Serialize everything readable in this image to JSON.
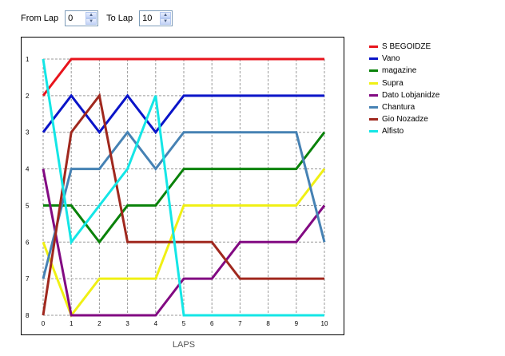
{
  "controls": {
    "from_label": "From Lap",
    "from_value": "0",
    "to_label": "To Lap",
    "to_value": "10"
  },
  "chart_data": {
    "type": "line",
    "x": [
      0,
      1,
      2,
      3,
      4,
      5,
      6,
      7,
      8,
      9,
      10
    ],
    "xlabel": "LAPS",
    "ylabel": "",
    "xlim": [
      0,
      10
    ],
    "ylim": [
      1,
      8
    ],
    "y_inverted": true,
    "x_ticks": [
      "0",
      "1",
      "2",
      "3",
      "4",
      "5",
      "6",
      "7",
      "8",
      "9",
      "10"
    ],
    "y_ticks": [
      "1",
      "2",
      "3",
      "4",
      "5",
      "6",
      "7",
      "8"
    ],
    "grid": true,
    "legend_position": "right",
    "series": [
      {
        "name": "S BEGOIDZE",
        "color": "#e8141c",
        "values": [
          2,
          1,
          1,
          1,
          1,
          1,
          1,
          1,
          1,
          1,
          1
        ]
      },
      {
        "name": "Vano",
        "color": "#0a14c8",
        "values": [
          3,
          2,
          3,
          2,
          3,
          2,
          2,
          2,
          2,
          2,
          2
        ]
      },
      {
        "name": "magazine",
        "color": "#0a820a",
        "values": [
          5,
          5,
          6,
          5,
          5,
          4,
          4,
          4,
          4,
          4,
          3
        ]
      },
      {
        "name": "Supra",
        "color": "#f0f014",
        "values": [
          6,
          8,
          7,
          7,
          7,
          5,
          5,
          5,
          5,
          5,
          4
        ]
      },
      {
        "name": "Dato Lobjanidze",
        "color": "#820a82",
        "values": [
          4,
          8,
          8,
          8,
          8,
          7,
          7,
          6,
          6,
          6,
          5
        ]
      },
      {
        "name": "Chantura",
        "color": "#4682b4",
        "values": [
          7,
          4,
          4,
          3,
          4,
          3,
          3,
          3,
          3,
          3,
          6
        ]
      },
      {
        "name": "Gio Nozadze",
        "color": "#a0281e",
        "values": [
          8,
          3,
          2,
          6,
          6,
          6,
          6,
          7,
          7,
          7,
          7
        ]
      },
      {
        "name": "Alfisto",
        "color": "#14e6e6",
        "values": [
          1,
          6,
          5,
          4,
          2,
          8,
          8,
          8,
          8,
          8,
          8
        ]
      }
    ]
  }
}
